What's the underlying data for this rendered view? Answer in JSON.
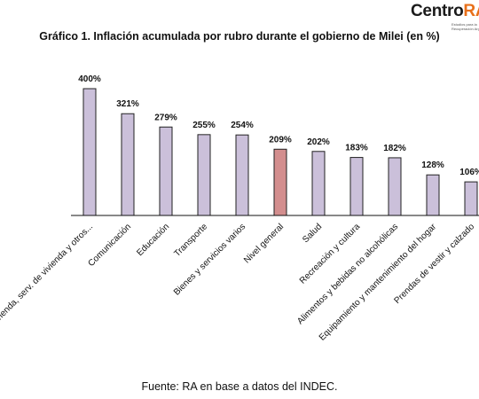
{
  "header": {
    "logo_brand_main": "Centro",
    "logo_brand_accent": "RA",
    "logo_tagline": "Estudios para la\nRecuperación Argentina"
  },
  "colors": {
    "bar": "#cbc0da",
    "bar_highlight": "#d38e8e",
    "bar_stroke": "#222222",
    "axis": "#111111",
    "logo_accent": "#e8701a"
  },
  "chart_data": {
    "type": "bar",
    "title": "Gráfico 1. Inflación acumulada por rubro durante el gobierno de Milei (en %)",
    "xlabel": "",
    "ylabel": "",
    "ylim": [
      0,
      400
    ],
    "grid": false,
    "legend": "none",
    "highlight_category": "Nivel general",
    "categories": [
      "Vivienda, serv. de vivienda y otros...",
      "Comunicación",
      "Educación",
      "Transporte",
      "Bienes y servicios varios",
      "Nivel general",
      "Salud",
      "Recreación y cultura",
      "Alimentos y bebidas no alcohólicas",
      "Equipamiento y mantenimiento del hogar",
      "Prendas de vestir y calzado"
    ],
    "values": [
      400,
      321,
      279,
      255,
      254,
      209,
      202,
      183,
      182,
      128,
      106
    ],
    "data_labels": [
      "400%",
      "321%",
      "279%",
      "255%",
      "254%",
      "209%",
      "202%",
      "183%",
      "182%",
      "128%",
      "106%"
    ]
  },
  "footer": {
    "source": "Fuente: RA en base a datos del INDEC."
  }
}
